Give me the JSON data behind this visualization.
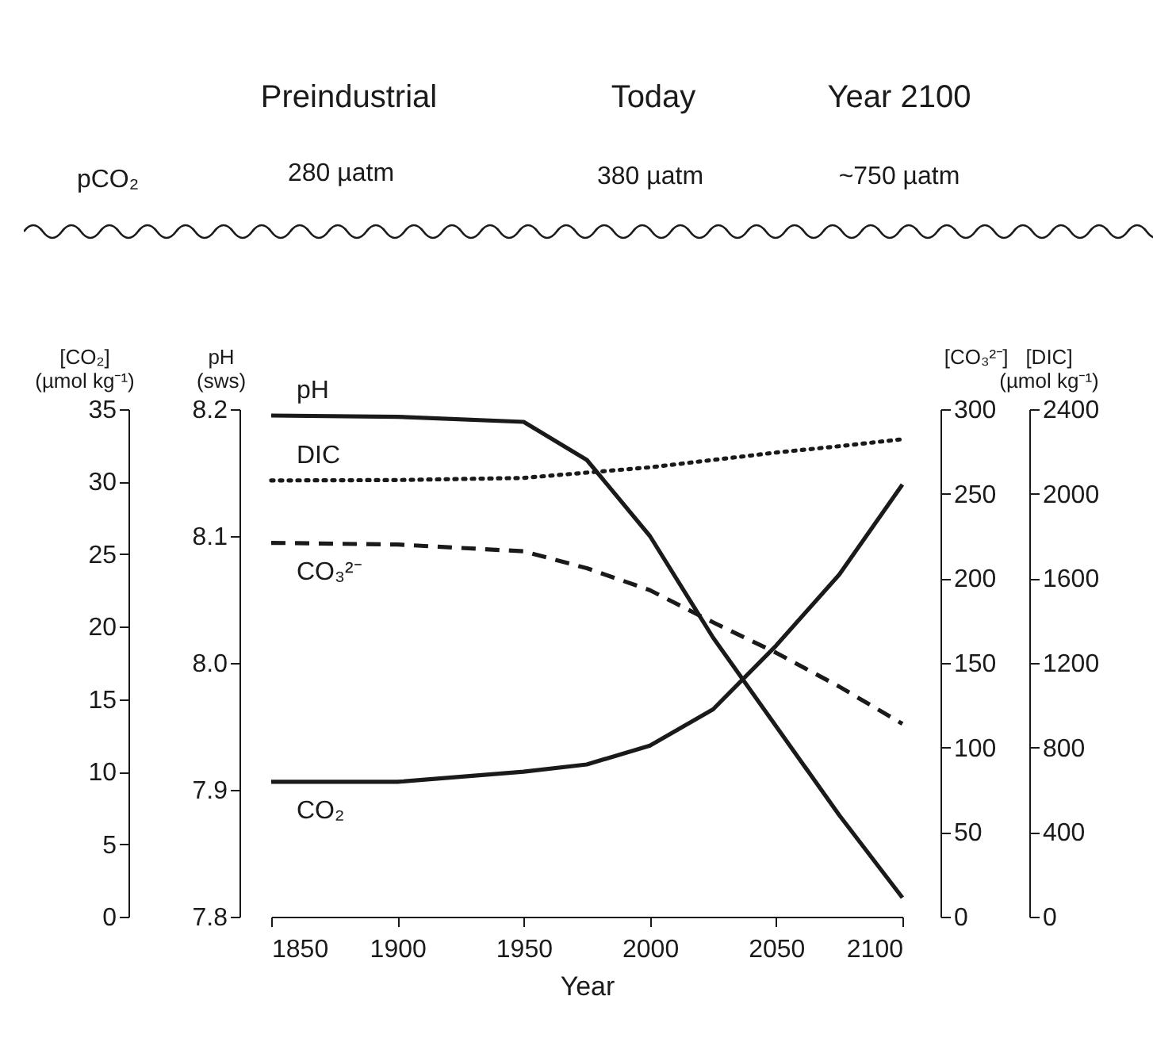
{
  "chart_data": [
    {
      "type": "line",
      "xlabel": "Year",
      "ylabel": "pH\n(sws)",
      "y2label": "[CO₃²⁻]",
      "x": [
        1850,
        1900,
        1950,
        1975,
        2000,
        2025,
        2050,
        2075,
        2100
      ],
      "xlim": [
        1850,
        2100
      ],
      "xticks": [
        1850,
        1900,
        1950,
        2000,
        2050,
        2100
      ],
      "ylim": [
        7.8,
        8.2
      ],
      "yticks": [
        {
          "value": 7.8,
          "label": "7.8"
        },
        {
          "value": 7.9,
          "label": "7.9"
        },
        {
          "value": 8,
          "label": "8.0"
        },
        {
          "value": 8.1,
          "label": "8.1"
        },
        {
          "value": 8.2,
          "label": "8.2"
        }
      ],
      "y2lim": [
        0,
        300
      ],
      "y2ticks": [
        0,
        50,
        100,
        150,
        200,
        250,
        300
      ],
      "series": [
        {
          "name": "pH",
          "color": "#1a1a1a",
          "line_style": "solid",
          "values": [
            8.195,
            8.194,
            8.19,
            8.16,
            8.1,
            8.02,
            7.95,
            7.88,
            7.815
          ]
        },
        {
          "name": "CO₃²⁻",
          "color": "#1a1a1a",
          "line_style": "dashed",
          "axis": "y2",
          "values": [
            221,
            220,
            216,
            206,
            193,
            174,
            156,
            136,
            114
          ]
        }
      ],
      "grid": false,
      "legend": false,
      "annotations": [
        "Preindustrial",
        "Today",
        "Year 2100",
        "pCO₂",
        "280 µatm",
        "380 µatm",
        "~750 µatm"
      ]
    },
    {
      "type": "line",
      "ylabel": "[CO₂]\n(µmol kg⁻¹)",
      "y2label": "[DIC]\n(µmol kg⁻¹)",
      "x": [
        1850,
        1900,
        1950,
        1975,
        2000,
        2025,
        2050,
        2075,
        2100
      ],
      "xlim": [
        1850,
        2100
      ],
      "tick_labels": "y",
      "ylim": [
        0,
        35
      ],
      "yticks": [
        0,
        5,
        10,
        15,
        20,
        25,
        30,
        35
      ],
      "y2lim": [
        0,
        2400
      ],
      "y2ticks": [
        0,
        400,
        800,
        1200,
        1600,
        2000,
        2400
      ],
      "series": [
        {
          "name": "DIC",
          "color": "#1a1a1a",
          "line_style": "dotted",
          "axis": "y2",
          "values": [
            2063,
            2065,
            2075,
            2100,
            2125,
            2160,
            2195,
            2225,
            2258
          ]
        },
        {
          "name": "CO₂",
          "color": "#1a1a1a",
          "line_style": "solid",
          "values": [
            9.3,
            9.3,
            10,
            10.5,
            11.8,
            14.3,
            18.7,
            23.6,
            29.8
          ]
        }
      ],
      "grid": false,
      "legend": false
    }
  ]
}
